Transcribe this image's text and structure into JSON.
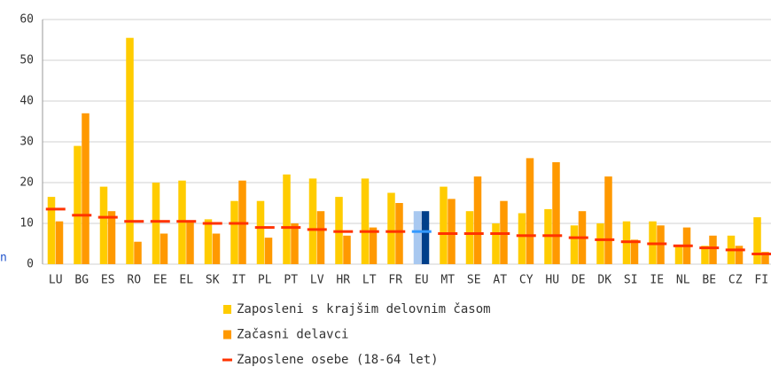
{
  "chart_data": {
    "type": "bar_marker",
    "side_text": "n",
    "categories": [
      "LU",
      "BG",
      "ES",
      "RO",
      "EE",
      "EL",
      "SK",
      "IT",
      "PL",
      "PT",
      "LV",
      "HR",
      "LT",
      "FR",
      "EU",
      "MT",
      "SE",
      "AT",
      "CY",
      "HU",
      "DE",
      "DK",
      "SI",
      "IE",
      "NL",
      "BE",
      "CZ",
      "FI"
    ],
    "series": [
      {
        "name": "Zaposleni s krajšim delovnim časom",
        "color": "#ffcc00",
        "highlight_color": "#a8c8f0",
        "values": [
          16.5,
          29,
          19,
          55.5,
          20,
          20.5,
          11,
          15.5,
          15.5,
          22,
          21,
          16.5,
          21,
          17.5,
          13,
          19,
          13,
          10,
          12.5,
          13.5,
          9.5,
          10,
          10.5,
          10.5,
          4.5,
          4.5,
          7,
          11.5
        ]
      },
      {
        "name": "Začasni delavci",
        "color": "#ff9900",
        "highlight_color": "#003f8a",
        "values": [
          10.5,
          37,
          13,
          5.5,
          7.5,
          10.5,
          7.5,
          20.5,
          6.5,
          10,
          13,
          7,
          9,
          15,
          13,
          16,
          21.5,
          15.5,
          26,
          25,
          13,
          21.5,
          6,
          9.5,
          9,
          7,
          4.5,
          3
        ]
      },
      {
        "name": "Zaposlene osebe (18-64 let)",
        "color": "#ff3300",
        "highlight_color": "#3399ff",
        "marker": "dash",
        "values": [
          13.5,
          12,
          11.5,
          10.5,
          10.5,
          10.5,
          10,
          10,
          9,
          9,
          8.5,
          8,
          8,
          8,
          8,
          7.5,
          7.5,
          7.5,
          7,
          7,
          6.5,
          6,
          5.5,
          5,
          4.5,
          4,
          3.5,
          2.5
        ]
      }
    ],
    "highlight_index": 14,
    "ylim": [
      0,
      60
    ],
    "yticks": [
      0,
      10,
      20,
      30,
      40,
      50,
      60
    ],
    "grid": true
  }
}
